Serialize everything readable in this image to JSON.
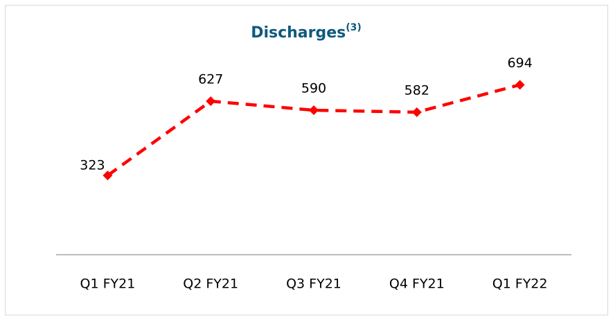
{
  "chart_data": {
    "type": "line",
    "title": "Discharges",
    "title_note": "(3)",
    "categories": [
      "Q1 FY21",
      "Q2 FY21",
      "Q3 FY21",
      "Q4 FY21",
      "Q1 FY22"
    ],
    "values": [
      323,
      627,
      590,
      582,
      694
    ],
    "color": "#ff0000",
    "ylim": [
      0,
      800
    ]
  }
}
